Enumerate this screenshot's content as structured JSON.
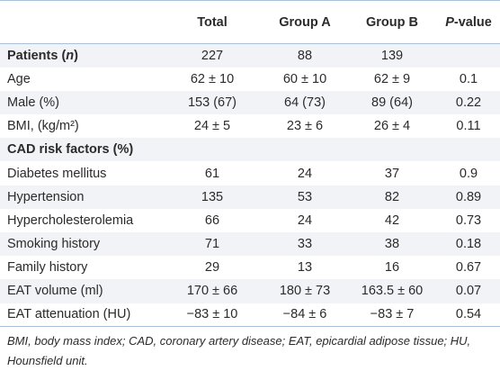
{
  "header": {
    "label": "",
    "total": "Total",
    "group_a": "Group A",
    "group_b": "Group B",
    "pvalue_italic": "P",
    "pvalue_rest": "-value"
  },
  "rows": [
    {
      "label": "Patients",
      "label_suffix": "n",
      "total": "227",
      "group_a": "88",
      "group_b": "139",
      "pvalue": ""
    },
    {
      "label": "Age",
      "total": "62 ± 10",
      "group_a": "60 ± 10",
      "group_b": "62 ± 9",
      "pvalue": "0.1"
    },
    {
      "label": "Male (%)",
      "total": "153 (67)",
      "group_a": "64 (73)",
      "group_b": "89 (64)",
      "pvalue": "0.22"
    },
    {
      "label": "BMI, (kg/m²)",
      "total": "24 ± 5",
      "group_a": "23 ± 6",
      "group_b": "26 ± 4",
      "pvalue": "0.11"
    },
    {
      "label": "CAD risk factors (%)",
      "total": "",
      "group_a": "",
      "group_b": "",
      "pvalue": ""
    },
    {
      "label": "Diabetes mellitus",
      "total": "61",
      "group_a": "24",
      "group_b": "37",
      "pvalue": "0.9"
    },
    {
      "label": "Hypertension",
      "total": "135",
      "group_a": "53",
      "group_b": "82",
      "pvalue": "0.89"
    },
    {
      "label": "Hypercholesterolemia",
      "total": "66",
      "group_a": "24",
      "group_b": "42",
      "pvalue": "0.73"
    },
    {
      "label": "Smoking history",
      "total": "71",
      "group_a": "33",
      "group_b": "38",
      "pvalue": "0.18"
    },
    {
      "label": "Family history",
      "total": "29",
      "group_a": "13",
      "group_b": "16",
      "pvalue": "0.67"
    },
    {
      "label": "EAT volume (ml)",
      "total": "170 ± 66",
      "group_a": "180 ± 73",
      "group_b": "163.5 ± 60",
      "pvalue": "0.07"
    },
    {
      "label": "EAT attenuation (HU)",
      "total": "−83 ± 10",
      "group_a": "−84 ± 6",
      "group_b": "−83 ± 7",
      "pvalue": "0.54"
    }
  ],
  "footnote": "BMI, body mass index; CAD, coronary artery disease; EAT, epicardial adipose tissue; HU, Hounsfield unit.",
  "colors": {
    "rule": "#a8c0d8",
    "stripe": "#f1f3f6",
    "text": "#2b2b2b"
  }
}
